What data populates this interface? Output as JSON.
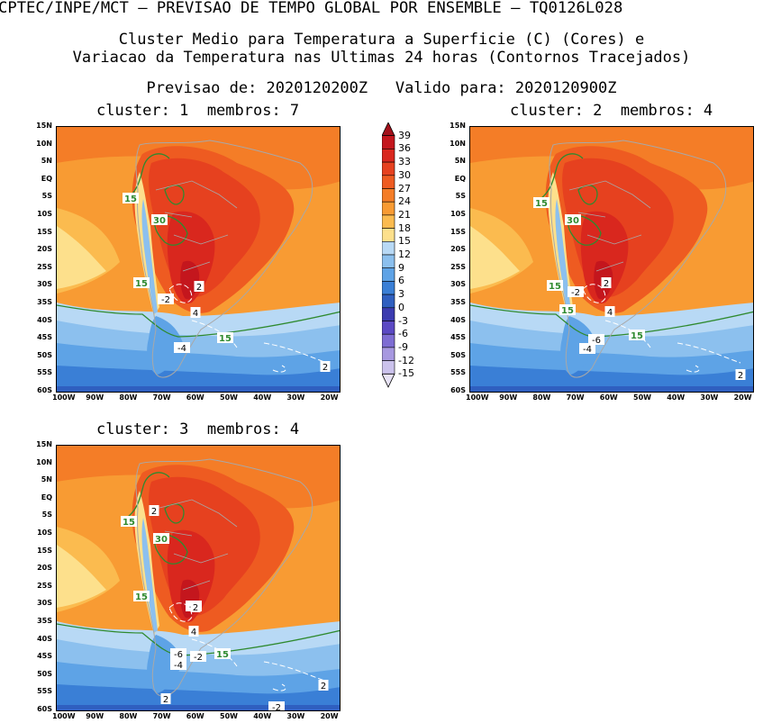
{
  "header": {
    "line1": "CPTEC/INPE/MCT – PREVISAO DE TEMPO GLOBAL POR ENSEMBLE – TQ0126L028",
    "line2": "Cluster Medio para Temperatura a Superficie (C) (Cores) e",
    "line3": "Variacao da Temperatura nas Ultimas 24 horas (Contornos Tracejados)",
    "line4": "Previsao de: 2020120200Z   Valido para: 2020120900Z"
  },
  "panels": [
    {
      "title": "cluster: 1  membros: 7",
      "labels": [
        "15",
        "30",
        "15",
        "-2",
        "2",
        "4",
        "-4",
        "15",
        "2"
      ]
    },
    {
      "title": "cluster: 2  membros: 4",
      "labels": [
        "15",
        "30",
        "15",
        "-2",
        "2",
        "15",
        "4",
        "-6",
        "-4",
        "15",
        "2"
      ]
    },
    {
      "title": "cluster: 3  membros: 4",
      "labels": [
        "2",
        "15",
        "30",
        "15",
        "-2",
        "2",
        "4",
        "-6",
        "-4",
        "-2",
        "15",
        "2",
        "2",
        "-2"
      ]
    }
  ],
  "lat_labels": [
    "15N",
    "10N",
    "5N",
    "EQ",
    "5S",
    "10S",
    "15S",
    "20S",
    "25S",
    "30S",
    "35S",
    "40S",
    "45S",
    "50S",
    "55S",
    "60S"
  ],
  "lon_labels": [
    "100W",
    "90W",
    "80W",
    "70W",
    "60W",
    "50W",
    "40W",
    "30W",
    "20W"
  ],
  "colorbar": {
    "levels": [
      "39",
      "36",
      "33",
      "30",
      "27",
      "24",
      "21",
      "18",
      "15",
      "12",
      "9",
      "6",
      "3",
      "0",
      "-3",
      "-6",
      "-9",
      "-12",
      "-15"
    ],
    "colors": [
      "#a3101a",
      "#c4161d",
      "#d9271e",
      "#e6411f",
      "#ee5b21",
      "#f47d27",
      "#f89b33",
      "#fbbb4f",
      "#fde08c",
      "#b8d9f5",
      "#8cc0ee",
      "#5ea3e6",
      "#3a7fd6",
      "#2f5fc0",
      "#3b3bb0",
      "#5b49c4",
      "#7e6dd3",
      "#a798e0",
      "#cbc2ec",
      "#e8e3f6"
    ]
  }
}
